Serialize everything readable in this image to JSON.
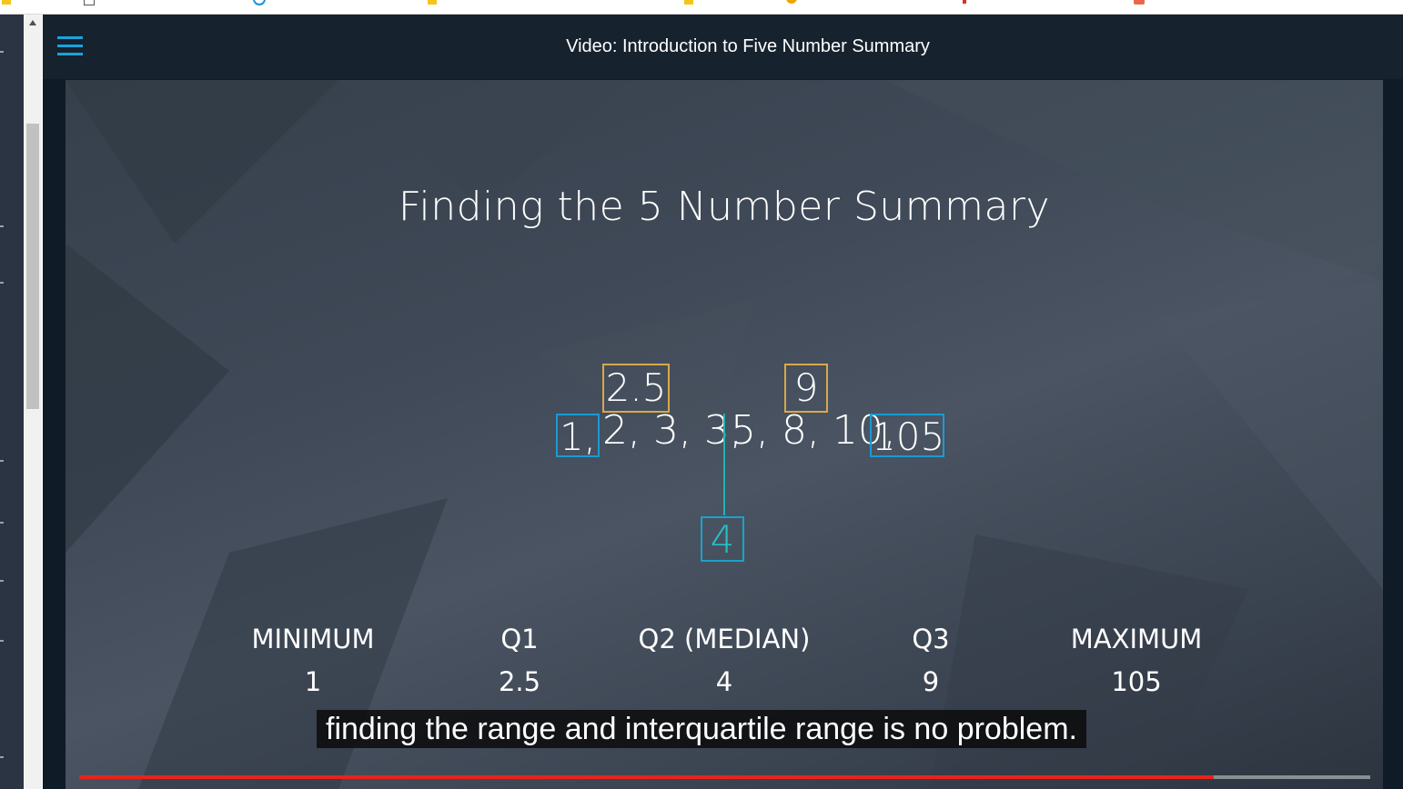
{
  "header": {
    "title": "Video: Introduction to Five Number Summary"
  },
  "slide": {
    "title": "Finding the 5 Number Summary",
    "sequence": {
      "segment_2": "2, 3, 3,",
      "segment_3": "5, 8, 10,"
    },
    "boxes": {
      "min": "1,",
      "max": "105",
      "q1": "2.5",
      "q3": "9",
      "median": "4"
    },
    "summary": [
      {
        "label": "MINIMUM",
        "value": "1"
      },
      {
        "label": "Q1",
        "value": "2.5"
      },
      {
        "label": "Q2 (MEDIAN)",
        "value": "4"
      },
      {
        "label": "Q3",
        "value": "9"
      },
      {
        "label": "MAXIMUM",
        "value": "105"
      }
    ]
  },
  "player": {
    "caption": "finding the range and interquartile range is no problem.",
    "progress": 0.879
  },
  "colors": {
    "accent_blue": "#1a9bd3",
    "quartile_yellow": "#d9a84a",
    "median_teal": "#1eb3b7",
    "progress_red": "#e8231b"
  },
  "icons": {
    "menu": "hamburger-menu-icon"
  }
}
